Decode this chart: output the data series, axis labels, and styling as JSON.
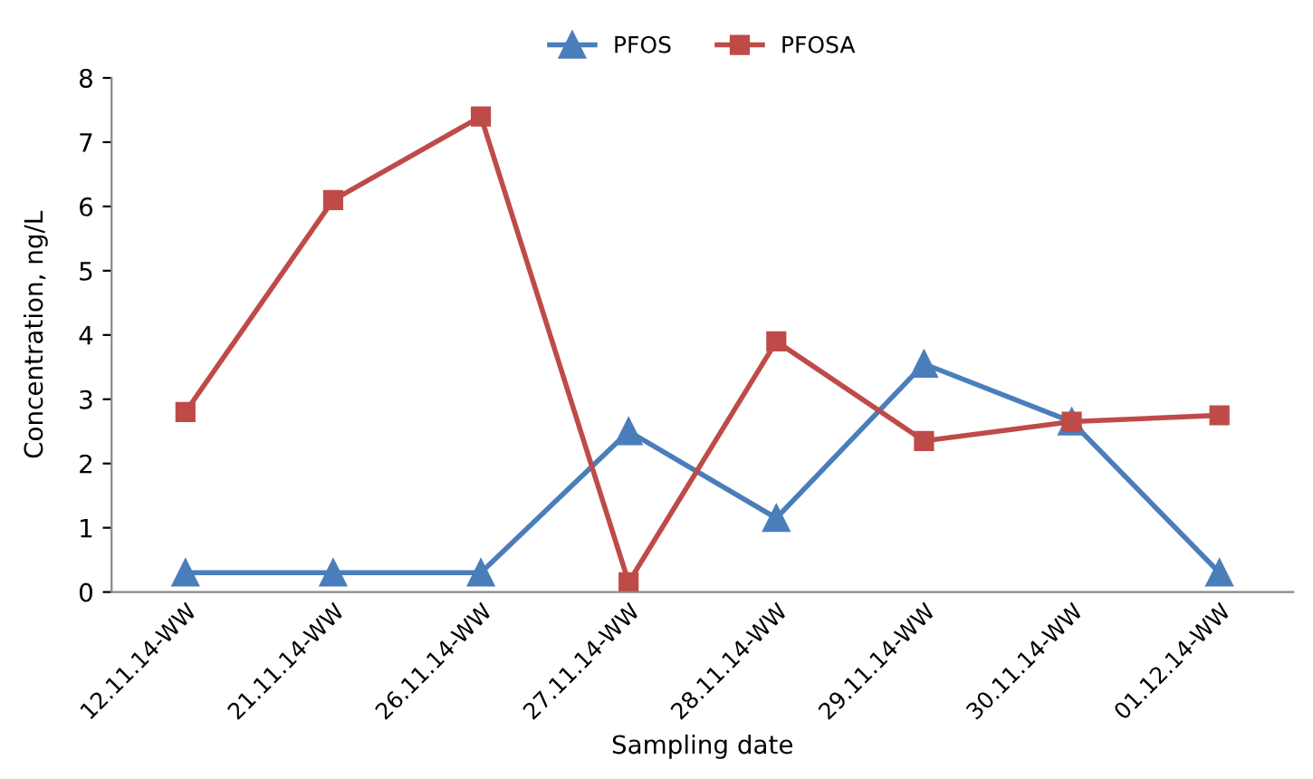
{
  "chart_data": {
    "type": "line",
    "xlabel": "Sampling date",
    "ylabel": "Concentration, ng/L",
    "categories": [
      "12.11.14-WW",
      "21.11.14-WW",
      "26.11.14-WW",
      "27.11.14-WW",
      "28.11.14-WW",
      "29.11.14-WW",
      "30.11.14-WW",
      "01.12.14-WW"
    ],
    "series": [
      {
        "name": "PFOS",
        "color": "#4a7ebb",
        "marker": "triangle",
        "values": [
          0.3,
          0.3,
          0.3,
          2.5,
          1.15,
          3.55,
          2.65,
          0.3
        ]
      },
      {
        "name": "PFOSA",
        "color": "#be4b48",
        "marker": "square",
        "values": [
          2.8,
          6.1,
          7.4,
          0.15,
          3.9,
          2.35,
          2.65,
          2.75
        ]
      }
    ],
    "ylim": [
      0,
      8
    ],
    "yticks": [
      0,
      1,
      2,
      3,
      4,
      5,
      6,
      7,
      8
    ],
    "grid": false,
    "legend": "top",
    "line_style": "solid"
  }
}
